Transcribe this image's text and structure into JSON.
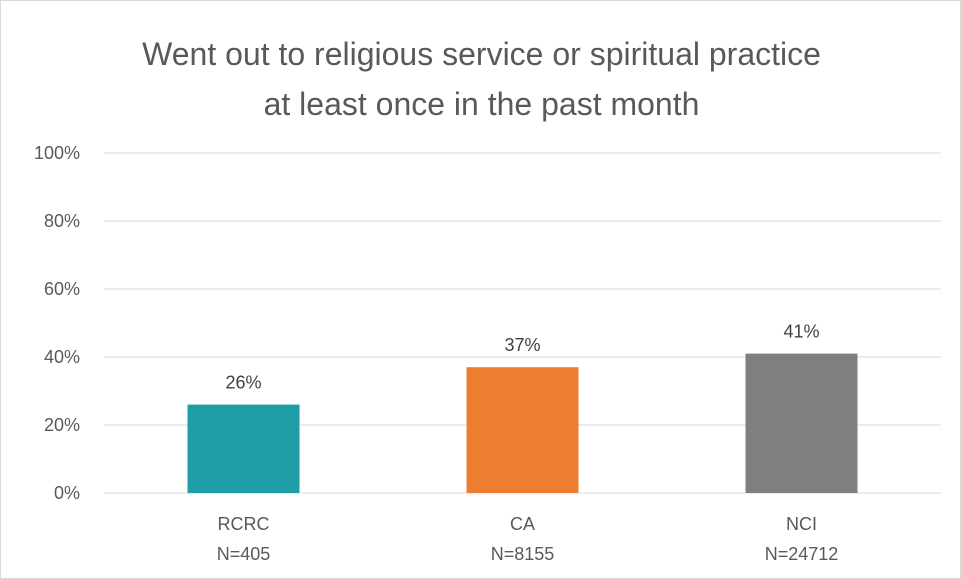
{
  "chart_data": {
    "type": "bar",
    "title_lines": [
      "Went out to religious service or spiritual practice",
      "at least once in the past month"
    ],
    "categories": [
      {
        "line1": "RCRC",
        "line2": "N=405"
      },
      {
        "line1": "CA",
        "line2": "N=8155"
      },
      {
        "line1": "NCI",
        "line2": "N=24712"
      }
    ],
    "values": [
      26,
      37,
      41
    ],
    "data_labels": [
      "26%",
      "37%",
      "41%"
    ],
    "colors": [
      "#1f9ea7",
      "#ed7d31",
      "#7f7f7f"
    ],
    "ylim": [
      0,
      100
    ],
    "yticks": [
      {
        "value": 0,
        "label": "0%"
      },
      {
        "value": 20,
        "label": "20%"
      },
      {
        "value": 40,
        "label": "40%"
      },
      {
        "value": 60,
        "label": "60%"
      },
      {
        "value": 80,
        "label": "80%"
      },
      {
        "value": 100,
        "label": "100%"
      }
    ],
    "grid": true,
    "gridline_color": "#d9d9d9"
  }
}
